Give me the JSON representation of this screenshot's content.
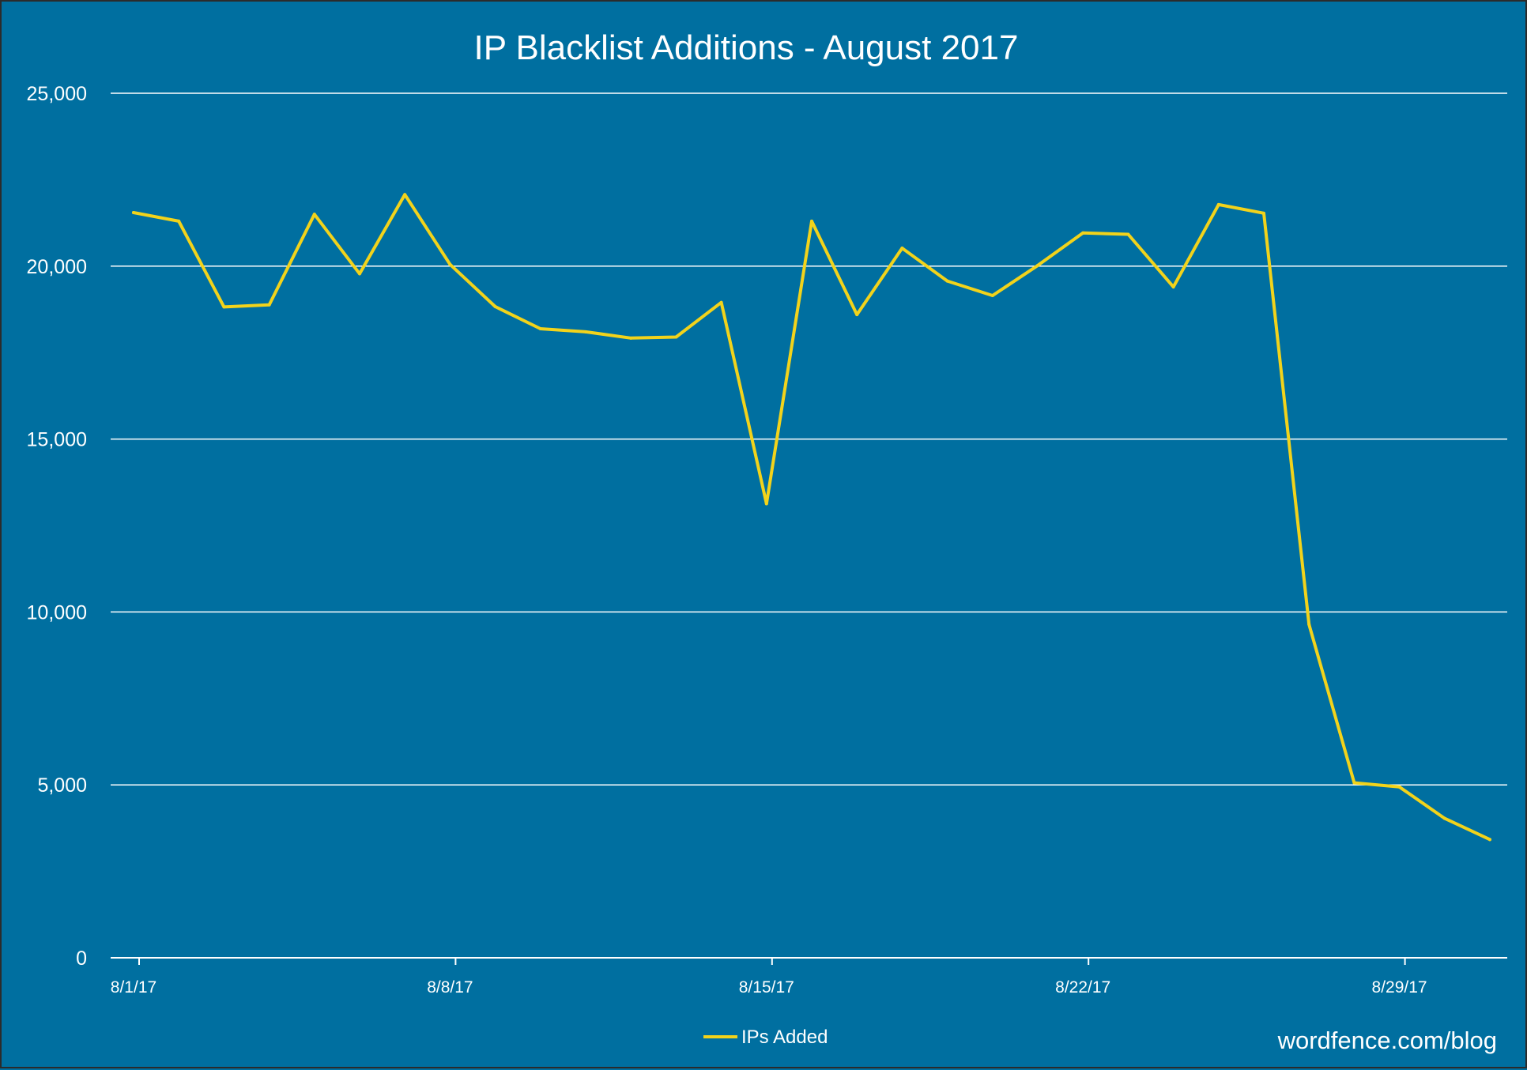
{
  "chart_data": {
    "type": "line",
    "title": "IP Blacklist Additions - August 2017",
    "xlabel": "",
    "ylabel": "",
    "ylim": [
      0,
      25000
    ],
    "y_ticks": [
      {
        "value": 0,
        "label": "0"
      },
      {
        "value": 5000,
        "label": "5,000"
      },
      {
        "value": 10000,
        "label": "10,000"
      },
      {
        "value": 15000,
        "label": "15,000"
      },
      {
        "value": 20000,
        "label": "20,000"
      },
      {
        "value": 25000,
        "label": "25,000"
      }
    ],
    "x_ticks": [
      {
        "day": 1,
        "label": "8/1/17"
      },
      {
        "day": 8,
        "label": "8/8/17"
      },
      {
        "day": 15,
        "label": "8/15/17"
      },
      {
        "day": 22,
        "label": "8/22/17"
      },
      {
        "day": 29,
        "label": "8/29/17"
      }
    ],
    "x": [
      "8/1/17",
      "8/2/17",
      "8/3/17",
      "8/4/17",
      "8/5/17",
      "8/6/17",
      "8/7/17",
      "8/8/17",
      "8/9/17",
      "8/10/17",
      "8/11/17",
      "8/12/17",
      "8/13/17",
      "8/14/17",
      "8/15/17",
      "8/16/17",
      "8/17/17",
      "8/18/17",
      "8/19/17",
      "8/20/17",
      "8/21/17",
      "8/22/17",
      "8/23/17",
      "8/24/17",
      "8/25/17",
      "8/26/17",
      "8/27/17",
      "8/28/17",
      "8/29/17",
      "8/30/17",
      "8/31/17"
    ],
    "series": [
      {
        "name": "IPs Added",
        "color": "#f2d31b",
        "values": [
          21550,
          21300,
          18820,
          18880,
          21500,
          19780,
          22070,
          20050,
          18830,
          18190,
          18100,
          17920,
          17950,
          18950,
          13130,
          21300,
          18600,
          20520,
          19570,
          19150,
          20020,
          20960,
          20920,
          19400,
          21780,
          21530,
          9640,
          5060,
          4940,
          4030,
          3420
        ]
      }
    ],
    "grid": true,
    "legend_position": "bottom-center"
  },
  "legend": {
    "label": "IPs Added"
  },
  "watermark": "wordfence.com/blog",
  "colors": {
    "background": "#006fa0",
    "line": "#f2d31b",
    "grid": "#ffffff",
    "text": "#ffffff"
  }
}
